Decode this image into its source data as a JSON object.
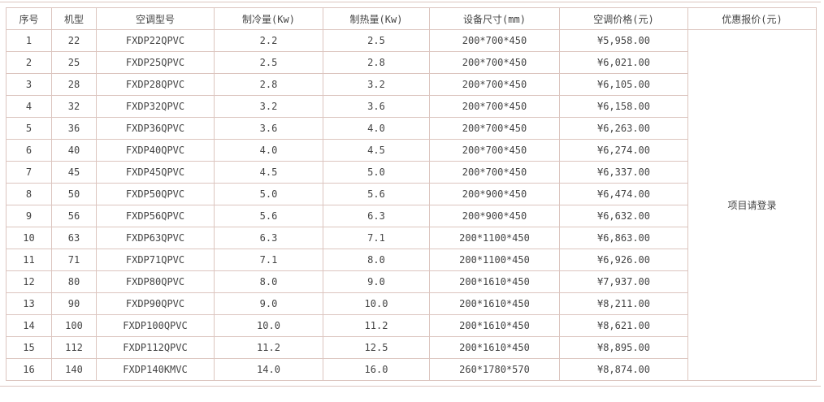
{
  "table": {
    "headers": [
      "序号",
      "机型",
      "空调型号",
      "制冷量(Kw)",
      "制热量(Kw)",
      "设备尺寸(mm)",
      "空调价格(元)",
      "优惠报价(元)"
    ],
    "rows": [
      [
        "1",
        "22",
        "FXDP22QPVC",
        "2.2",
        "2.5",
        "200*700*450",
        "¥5,958.00"
      ],
      [
        "2",
        "25",
        "FXDP25QPVC",
        "2.5",
        "2.8",
        "200*700*450",
        "¥6,021.00"
      ],
      [
        "3",
        "28",
        "FXDP28QPVC",
        "2.8",
        "3.2",
        "200*700*450",
        "¥6,105.00"
      ],
      [
        "4",
        "32",
        "FXDP32QPVC",
        "3.2",
        "3.6",
        "200*700*450",
        "¥6,158.00"
      ],
      [
        "5",
        "36",
        "FXDP36QPVC",
        "3.6",
        "4.0",
        "200*700*450",
        "¥6,263.00"
      ],
      [
        "6",
        "40",
        "FXDP40QPVC",
        "4.0",
        "4.5",
        "200*700*450",
        "¥6,274.00"
      ],
      [
        "7",
        "45",
        "FXDP45QPVC",
        "4.5",
        "5.0",
        "200*700*450",
        "¥6,337.00"
      ],
      [
        "8",
        "50",
        "FXDP50QPVC",
        "5.0",
        "5.6",
        "200*900*450",
        "¥6,474.00"
      ],
      [
        "9",
        "56",
        "FXDP56QPVC",
        "5.6",
        "6.3",
        "200*900*450",
        "¥6,632.00"
      ],
      [
        "10",
        "63",
        "FXDP63QPVC",
        "6.3",
        "7.1",
        "200*1100*450",
        "¥6,863.00"
      ],
      [
        "11",
        "71",
        "FXDP71QPVC",
        "7.1",
        "8.0",
        "200*1100*450",
        "¥6,926.00"
      ],
      [
        "12",
        "80",
        "FXDP80QPVC",
        "8.0",
        "9.0",
        "200*1610*450",
        "¥7,937.00"
      ],
      [
        "13",
        "90",
        "FXDP90QPVC",
        "9.0",
        "10.0",
        "200*1610*450",
        "¥8,211.00"
      ],
      [
        "14",
        "100",
        "FXDP100QPVC",
        "10.0",
        "11.2",
        "200*1610*450",
        "¥8,621.00"
      ],
      [
        "15",
        "112",
        "FXDP112QPVC",
        "11.2",
        "12.5",
        "200*1610*450",
        "¥8,895.00"
      ],
      [
        "16",
        "140",
        "FXDP140KMVC",
        "14.0",
        "16.0",
        "260*1780*570",
        "¥8,874.00"
      ]
    ],
    "discount_quote_note": "项目请登录"
  },
  "colors": {
    "border": "#dcc5bf",
    "text": "#444444",
    "background": "#ffffff"
  }
}
